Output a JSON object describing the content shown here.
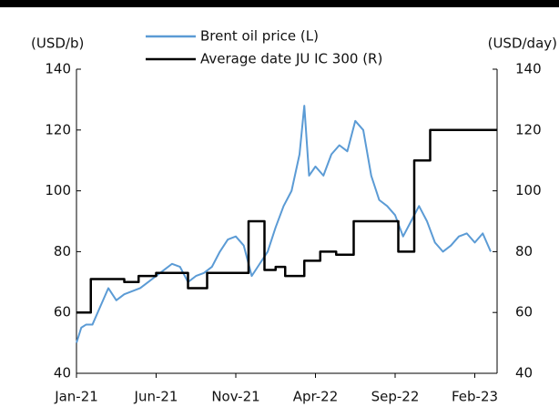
{
  "chart_data": {
    "type": "line",
    "y_label": "(USD/b)",
    "y2_label": "(USD/day)",
    "xlim": [
      0,
      26.4
    ],
    "xticks": [
      {
        "value": 0,
        "label": "Jan-21"
      },
      {
        "value": 5,
        "label": "Jun-21"
      },
      {
        "value": 10,
        "label": "Nov-21"
      },
      {
        "value": 15,
        "label": "Apr-22"
      },
      {
        "value": 20,
        "label": "Sep-22"
      },
      {
        "value": 25,
        "label": "Feb-23"
      }
    ],
    "ylim": [
      40,
      140
    ],
    "yticks": [
      40,
      60,
      80,
      100,
      120,
      140
    ],
    "y2lim": [
      40,
      140
    ],
    "y2ticks": [
      40,
      60,
      80,
      100,
      120,
      140
    ],
    "series": [
      {
        "name": "Brent oil price (L)",
        "color": "#5b9bd5",
        "step": false,
        "x": [
          0,
          0.3,
          0.6,
          1,
          1.5,
          2,
          2.5,
          3,
          3.5,
          4,
          4.5,
          5,
          5.5,
          6,
          6.5,
          7,
          7.5,
          8,
          8.5,
          9,
          9.5,
          10,
          10.5,
          11,
          11.5,
          12,
          12.5,
          13,
          13.5,
          14,
          14.3,
          14.6,
          15,
          15.5,
          16,
          16.5,
          17,
          17.5,
          18,
          18.5,
          19,
          19.5,
          20,
          20.5,
          21,
          21.5,
          22,
          22.5,
          23,
          23.5,
          24,
          24.5,
          25,
          25.5,
          26
        ],
        "values": [
          50,
          55,
          56,
          56,
          62,
          68,
          64,
          66,
          67,
          68,
          70,
          72,
          74,
          76,
          75,
          70,
          72,
          73,
          75,
          80,
          84,
          85,
          82,
          72,
          76,
          80,
          88,
          95,
          100,
          112,
          128,
          105,
          108,
          105,
          112,
          115,
          113,
          123,
          120,
          105,
          97,
          95,
          92,
          85,
          90,
          95,
          90,
          83,
          80,
          82,
          85,
          86,
          83,
          86,
          80
        ]
      },
      {
        "name": "Average date JU IC 300 (R)",
        "color": "#000000",
        "step": true,
        "axis": "y2",
        "x": [
          0,
          0.9,
          3,
          3.9,
          5,
          7,
          8.2,
          10.8,
          11.8,
          12.5,
          13.1,
          14.3,
          15.3,
          16.3,
          17.4,
          20.2,
          21.2,
          22.2,
          26.4
        ],
        "values": [
          60,
          71,
          70,
          72,
          73,
          68,
          73,
          90,
          74,
          75,
          72,
          77,
          80,
          79,
          90,
          80,
          110,
          120,
          120
        ]
      }
    ]
  }
}
